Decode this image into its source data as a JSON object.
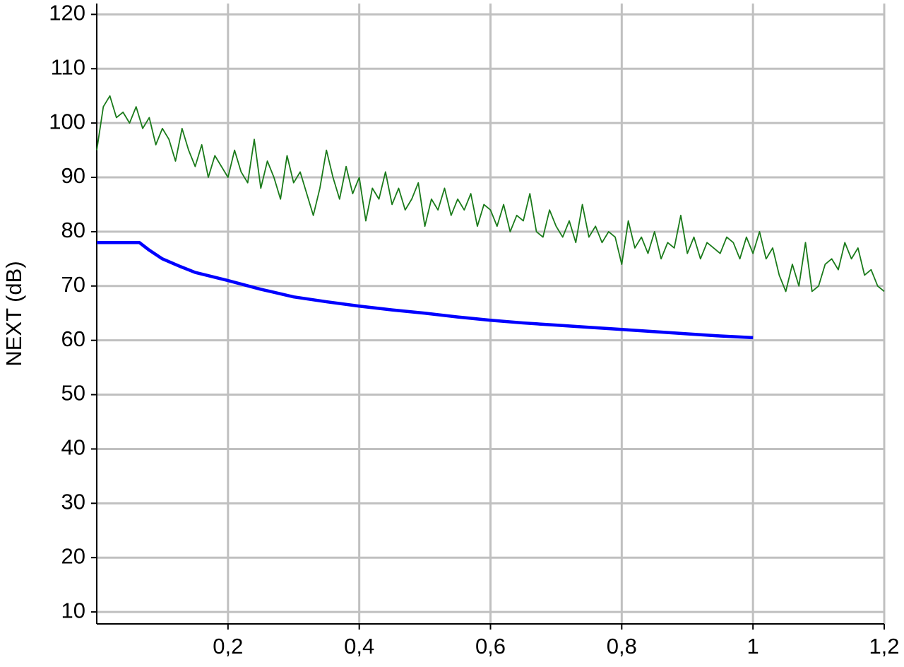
{
  "chart_data": {
    "type": "line",
    "y_label": "NEXT (dB)",
    "xlim": [
      0,
      1.2
    ],
    "ylim": [
      7.8,
      122
    ],
    "xticks": [
      {
        "value": 0.2,
        "label": "0,2"
      },
      {
        "value": 0.4,
        "label": "0,4"
      },
      {
        "value": 0.6,
        "label": "0,6"
      },
      {
        "value": 0.8,
        "label": "0,8"
      },
      1,
      {
        "value": 1.2,
        "label": "1,2"
      }
    ],
    "yticks": [
      10,
      20,
      30,
      40,
      50,
      60,
      70,
      80,
      90,
      100,
      110,
      120
    ],
    "grid": true,
    "series": [
      {
        "color": "#1a7a1a",
        "x": [
          0,
          0.01,
          0.02,
          0.03,
          0.04,
          0.05,
          0.06,
          0.07,
          0.08,
          0.09,
          0.1,
          0.11,
          0.12,
          0.13,
          0.14,
          0.15,
          0.16,
          0.17,
          0.18,
          0.19,
          0.2,
          0.21,
          0.22,
          0.23,
          0.24,
          0.25,
          0.26,
          0.27,
          0.28,
          0.29,
          0.3,
          0.31,
          0.32,
          0.33,
          0.34,
          0.35,
          0.36,
          0.37,
          0.38,
          0.39,
          0.4,
          0.41,
          0.42,
          0.43,
          0.44,
          0.45,
          0.46,
          0.47,
          0.48,
          0.49,
          0.5,
          0.51,
          0.52,
          0.53,
          0.54,
          0.55,
          0.56,
          0.57,
          0.58,
          0.59,
          0.6,
          0.61,
          0.62,
          0.63,
          0.64,
          0.65,
          0.66,
          0.67,
          0.68,
          0.69,
          0.7,
          0.71,
          0.72,
          0.73,
          0.74,
          0.75,
          0.76,
          0.77,
          0.78,
          0.79,
          0.8,
          0.81,
          0.82,
          0.83,
          0.84,
          0.85,
          0.86,
          0.87,
          0.88,
          0.89,
          0.9,
          0.91,
          0.92,
          0.93,
          0.94,
          0.95,
          0.96,
          0.97,
          0.98,
          0.99,
          1,
          1.01,
          1.02,
          1.03,
          1.04,
          1.05,
          1.06,
          1.07,
          1.08,
          1.09,
          1.1,
          1.11,
          1.12,
          1.13,
          1.14,
          1.15,
          1.16,
          1.17,
          1.18,
          1.19,
          1.2
        ],
        "values": [
          95,
          103,
          105,
          101,
          102,
          100,
          103,
          99,
          101,
          96,
          99,
          97,
          93,
          99,
          95,
          92,
          96,
          90,
          94,
          92,
          90,
          95,
          91,
          89,
          97,
          88,
          93,
          90,
          86,
          94,
          89,
          91,
          87,
          83,
          88,
          95,
          90,
          86,
          92,
          87,
          90,
          82,
          88,
          86,
          91,
          85,
          88,
          84,
          86,
          89,
          81,
          86,
          84,
          88,
          83,
          86,
          84,
          87,
          81,
          85,
          84,
          81,
          85,
          80,
          83,
          82,
          87,
          80,
          79,
          84,
          81,
          79,
          82,
          78,
          85,
          79,
          81,
          78,
          80,
          79,
          74,
          82,
          77,
          79,
          76,
          80,
          75,
          78,
          77,
          83,
          76,
          79,
          75,
          78,
          77,
          76,
          79,
          78,
          75,
          79,
          76,
          80,
          75,
          77,
          72,
          69,
          74,
          70,
          78,
          69,
          70,
          74,
          75,
          73,
          78,
          75,
          77,
          72,
          73,
          70,
          69
        ]
      },
      {
        "color": "#0000ff",
        "x": [
          0,
          0.065,
          0.08,
          0.1,
          0.125,
          0.15,
          0.2,
          0.25,
          0.3,
          0.35,
          0.4,
          0.45,
          0.5,
          0.55,
          0.6,
          0.65,
          0.7,
          0.75,
          0.8,
          0.85,
          0.9,
          0.95,
          1
        ],
        "values": [
          78,
          78,
          76.6,
          75,
          73.7,
          72.5,
          71,
          69.4,
          68,
          67.1,
          66.3,
          65.6,
          65,
          64.3,
          63.7,
          63.2,
          62.8,
          62.4,
          62,
          61.6,
          61.2,
          60.8,
          60.5
        ]
      }
    ]
  }
}
